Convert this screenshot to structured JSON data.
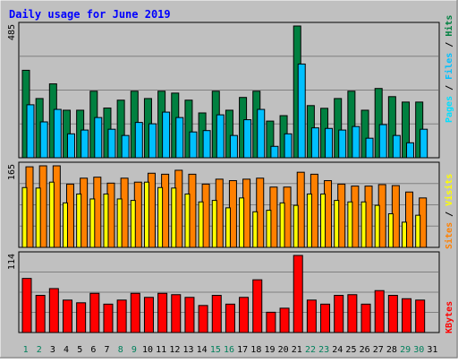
{
  "title": "Daily usage for June 2019",
  "colors": {
    "background": "#C0C0C0",
    "title": "#0000FF",
    "hits": "#008040",
    "files": "#00C0FF",
    "pages": "#00E0FF",
    "visits": "#FFFF00",
    "sites": "#FF8000",
    "kbytes": "#FF0000",
    "weekend_label": "#00805C",
    "weekday_label": "#000000"
  },
  "legend": {
    "top": [
      "Pages",
      "Files",
      "Hits"
    ],
    "middle": [
      "Sites",
      "Visits"
    ],
    "bottom": [
      "KBytes"
    ],
    "separator": "/"
  },
  "chart_data": [
    {
      "type": "bar",
      "panel": "hits-files-pages",
      "ymax_label": "485",
      "ylim": [
        0,
        485
      ],
      "categories": [
        "1",
        "2",
        "3",
        "4",
        "5",
        "6",
        "7",
        "8",
        "9",
        "10",
        "11",
        "12",
        "13",
        "14",
        "15",
        "16",
        "17",
        "18",
        "19",
        "20",
        "21",
        "22",
        "23",
        "24",
        "25",
        "26",
        "27",
        "28",
        "29",
        "30",
        "31"
      ],
      "series": [
        {
          "name": "Hits",
          "values": [
            322,
            218,
            272,
            175,
            175,
            245,
            183,
            212,
            245,
            218,
            245,
            238,
            212,
            165,
            245,
            175,
            222,
            245,
            135,
            155,
            485,
            192,
            182,
            218,
            245,
            175,
            255,
            225,
            205,
            205,
            0
          ]
        },
        {
          "name": "Files",
          "values": [
            195,
            132,
            178,
            88,
            102,
            148,
            105,
            82,
            130,
            125,
            168,
            148,
            95,
            100,
            158,
            82,
            140,
            178,
            42,
            88,
            345,
            110,
            108,
            102,
            115,
            72,
            122,
            82,
            55,
            105,
            0
          ]
        },
        {
          "name": "Pages",
          "values": [
            0,
            0,
            0,
            0,
            0,
            0,
            0,
            0,
            0,
            0,
            0,
            0,
            0,
            0,
            0,
            0,
            0,
            0,
            0,
            0,
            0,
            0,
            0,
            0,
            0,
            0,
            0,
            0,
            0,
            0,
            0
          ]
        }
      ]
    },
    {
      "type": "bar",
      "panel": "sites-visits",
      "ymax_label": "165",
      "ylim": [
        0,
        165
      ],
      "categories": [
        "1",
        "2",
        "3",
        "4",
        "5",
        "6",
        "7",
        "8",
        "9",
        "10",
        "11",
        "12",
        "13",
        "14",
        "15",
        "16",
        "17",
        "18",
        "19",
        "20",
        "21",
        "22",
        "23",
        "24",
        "25",
        "26",
        "27",
        "28",
        "29",
        "30",
        "31"
      ],
      "series": [
        {
          "name": "Sites",
          "values": [
            163,
            165,
            165,
            128,
            140,
            142,
            130,
            140,
            132,
            150,
            148,
            156,
            148,
            128,
            138,
            135,
            138,
            140,
            122,
            122,
            152,
            148,
            135,
            128,
            124,
            124,
            127,
            125,
            112,
            100,
            0
          ]
        },
        {
          "name": "Visits",
          "values": [
            121,
            120,
            132,
            90,
            108,
            98,
            108,
            98,
            95,
            132,
            121,
            120,
            108,
            92,
            95,
            80,
            100,
            72,
            75,
            90,
            85,
            108,
            108,
            95,
            92,
            92,
            85,
            68,
            51,
            65,
            0
          ]
        }
      ]
    },
    {
      "type": "bar",
      "panel": "kbytes",
      "ymax_label": "114",
      "ylim": [
        0,
        114
      ],
      "categories": [
        "1",
        "2",
        "3",
        "4",
        "5",
        "6",
        "7",
        "8",
        "9",
        "10",
        "11",
        "12",
        "13",
        "14",
        "15",
        "16",
        "17",
        "18",
        "19",
        "20",
        "21",
        "22",
        "23",
        "24",
        "25",
        "26",
        "27",
        "28",
        "29",
        "30",
        "31"
      ],
      "series": [
        {
          "name": "KBytes",
          "values": [
            80,
            55,
            65,
            48,
            44,
            58,
            42,
            48,
            58,
            52,
            58,
            56,
            52,
            40,
            55,
            42,
            52,
            78,
            30,
            36,
            114,
            48,
            42,
            55,
            56,
            42,
            62,
            55,
            50,
            48,
            0
          ]
        }
      ]
    }
  ],
  "weekend_days": [
    1,
    8,
    15,
    22,
    29,
    2,
    9,
    16,
    23,
    30
  ]
}
